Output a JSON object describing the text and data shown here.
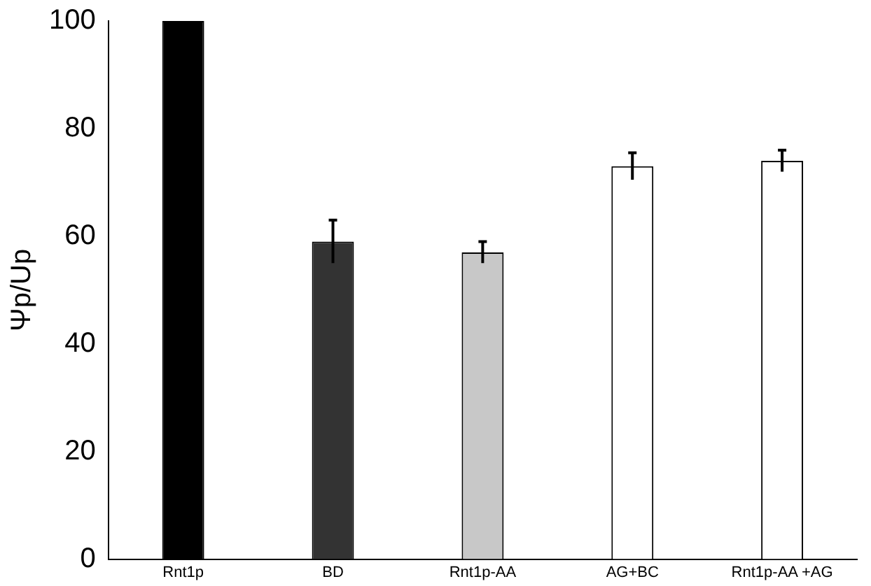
{
  "chart_data": {
    "type": "bar",
    "ylabel": "Ψp/Up",
    "categories": [
      "Rnt1p",
      "BD",
      "Rnt1p-AA",
      "AG+BC",
      "Rnt1p-AA +AG"
    ],
    "values": [
      100,
      59,
      57,
      73,
      74
    ],
    "errors": [
      null,
      4,
      2,
      2.5,
      2
    ],
    "colors": [
      "#000000",
      "#333333",
      "#c8c8c8",
      "#ffffff",
      "#ffffff"
    ],
    "ylim": [
      0,
      100
    ],
    "yticks": [
      0,
      20,
      40,
      60,
      80,
      100
    ],
    "grid": false,
    "legend": false
  }
}
